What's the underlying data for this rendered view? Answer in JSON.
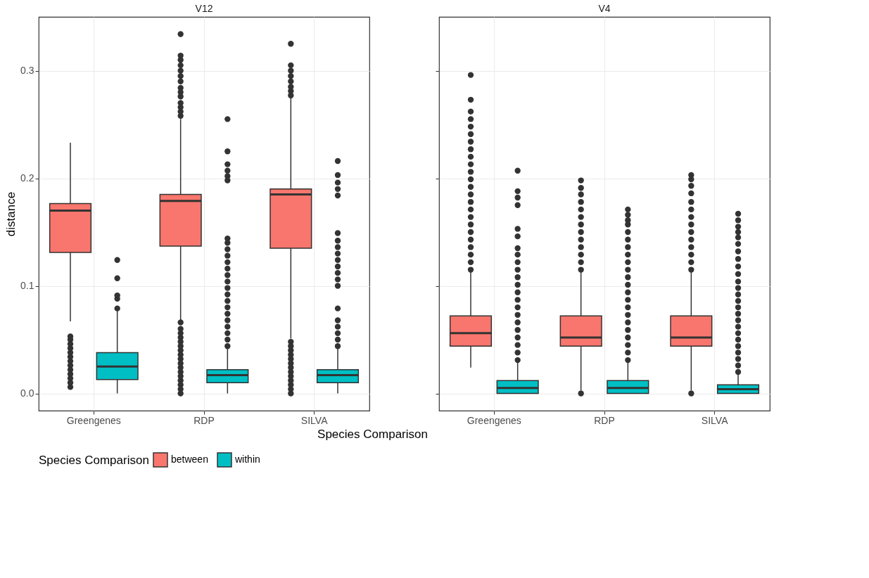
{
  "chart_data": [
    {
      "type": "box",
      "title": "V12",
      "xlabel": "Species Comparison",
      "ylabel": "distance",
      "legend_title": "Species Comparison",
      "legend": "bottom",
      "grid": true,
      "ylim": [
        -0.016,
        0.35
      ],
      "yticks": [
        {
          "value": 0,
          "label": "0.0"
        },
        {
          "value": 0.1,
          "label": "0.1"
        },
        {
          "value": 0.2,
          "label": "0.2"
        },
        {
          "value": 0.3,
          "label": "0.3"
        }
      ],
      "categories": [
        "Greengenes",
        "RDP",
        "SILVA"
      ],
      "series": [
        {
          "name": "between",
          "color": "#f8766d",
          "boxes": [
            {
              "low": 0.067,
              "q1": 0.131,
              "median": 0.17,
              "q3": 0.1765,
              "high": 0.233,
              "outliers": [
                0.006,
                0.01,
                0.014,
                0.018,
                0.022,
                0.026,
                0.03,
                0.034,
                0.038,
                0.042,
                0.046,
                0.05,
                0.053
              ]
            },
            {
              "low": 0.067,
              "q1": 0.137,
              "median": 0.179,
              "q3": 0.185,
              "high": 0.255,
              "outliers": [
                0,
                0.004,
                0.008,
                0.012,
                0.016,
                0.02,
                0.024,
                0.028,
                0.032,
                0.036,
                0.04,
                0.044,
                0.048,
                0.052,
                0.056,
                0.06,
                0.066,
                0.258,
                0.262,
                0.266,
                0.27,
                0.276,
                0.28,
                0.284,
                0.29,
                0.295,
                0.3,
                0.305,
                0.31,
                0.314,
                0.334
              ]
            },
            {
              "low": 0.051,
              "q1": 0.135,
              "median": 0.185,
              "q3": 0.19,
              "high": 0.275,
              "outliers": [
                0,
                0.004,
                0.008,
                0.012,
                0.016,
                0.02,
                0.024,
                0.028,
                0.032,
                0.036,
                0.04,
                0.044,
                0.048,
                0.277,
                0.281,
                0.285,
                0.29,
                0.295,
                0.3,
                0.305,
                0.325
              ]
            }
          ]
        },
        {
          "name": "within",
          "color": "#00bfc4",
          "boxes": [
            {
              "low": 0,
              "q1": 0.013,
              "median": 0.025,
              "q3": 0.038,
              "high": 0.077,
              "outliers": [
                0.079,
                0.088,
                0.091,
                0.107,
                0.124
              ]
            },
            {
              "low": 0,
              "q1": 0.01,
              "median": 0.017,
              "q3": 0.022,
              "high": 0.042,
              "outliers": [
                0.044,
                0.05,
                0.056,
                0.062,
                0.068,
                0.074,
                0.08,
                0.086,
                0.092,
                0.098,
                0.104,
                0.11,
                0.116,
                0.122,
                0.128,
                0.134,
                0.14,
                0.144,
                0.198,
                0.202,
                0.207,
                0.213,
                0.225,
                0.255
              ]
            },
            {
              "low": 0,
              "q1": 0.01,
              "median": 0.017,
              "q3": 0.022,
              "high": 0.042,
              "outliers": [
                0.044,
                0.05,
                0.056,
                0.062,
                0.068,
                0.079,
                0.1,
                0.106,
                0.112,
                0.118,
                0.124,
                0.13,
                0.136,
                0.142,
                0.149,
                0.184,
                0.19,
                0.196,
                0.203,
                0.216
              ]
            }
          ]
        }
      ]
    },
    {
      "type": "box",
      "title": "V4",
      "grid": true,
      "tick_labels": "x",
      "ylim": [
        -0.016,
        0.35
      ],
      "yticks": [
        {
          "value": 0,
          "label": null
        },
        {
          "value": 0.1,
          "label": null
        },
        {
          "value": 0.2,
          "label": null
        },
        {
          "value": 0.3,
          "label": null
        }
      ],
      "categories": [
        "Greengenes",
        "RDP",
        "SILVA"
      ],
      "series": [
        {
          "name": "between",
          "color": "#f8766d",
          "boxes": [
            {
              "low": 0.024,
              "q1": 0.044,
              "median": 0.056,
              "q3": 0.072,
              "high": 0.113,
              "outliers": [
                0.115,
                0.122,
                0.129,
                0.136,
                0.143,
                0.15,
                0.157,
                0.164,
                0.171,
                0.178,
                0.185,
                0.192,
                0.199,
                0.206,
                0.213,
                0.22,
                0.227,
                0.234,
                0.241,
                0.248,
                0.255,
                0.262,
                0.273,
                0.296
              ]
            },
            {
              "low": 0.003,
              "q1": 0.044,
              "median": 0.052,
              "q3": 0.072,
              "high": 0.113,
              "outliers": [
                0,
                0.115,
                0.122,
                0.129,
                0.136,
                0.143,
                0.15,
                0.157,
                0.164,
                0.171,
                0.178,
                0.185,
                0.191,
                0.198
              ]
            },
            {
              "low": 0.003,
              "q1": 0.044,
              "median": 0.052,
              "q3": 0.072,
              "high": 0.113,
              "outliers": [
                0,
                0.115,
                0.122,
                0.129,
                0.136,
                0.143,
                0.15,
                0.157,
                0.164,
                0.171,
                0.178,
                0.186,
                0.193,
                0.199,
                0.203
              ]
            }
          ]
        },
        {
          "name": "within",
          "color": "#00bfc4",
          "boxes": [
            {
              "low": 0,
              "q1": 0,
              "median": 0.005,
              "q3": 0.012,
              "high": 0.029,
              "outliers": [
                0.031,
                0.038,
                0.045,
                0.052,
                0.059,
                0.066,
                0.073,
                0.08,
                0.087,
                0.094,
                0.101,
                0.108,
                0.115,
                0.122,
                0.129,
                0.135,
                0.146,
                0.153,
                0.175,
                0.182,
                0.188,
                0.207
              ]
            },
            {
              "low": 0,
              "q1": 0,
              "median": 0.005,
              "q3": 0.012,
              "high": 0.029,
              "outliers": [
                0.031,
                0.038,
                0.045,
                0.052,
                0.059,
                0.066,
                0.073,
                0.08,
                0.087,
                0.094,
                0.101,
                0.108,
                0.115,
                0.122,
                0.129,
                0.136,
                0.143,
                0.15,
                0.157,
                0.161,
                0.166,
                0.171
              ]
            },
            {
              "low": 0,
              "q1": 0,
              "median": 0.004,
              "q3": 0.008,
              "high": 0.018,
              "outliers": [
                0.02,
                0.026,
                0.032,
                0.038,
                0.044,
                0.05,
                0.056,
                0.062,
                0.068,
                0.074,
                0.08,
                0.086,
                0.092,
                0.098,
                0.104,
                0.111,
                0.118,
                0.125,
                0.132,
                0.139,
                0.145,
                0.15,
                0.155,
                0.161,
                0.167
              ]
            }
          ]
        }
      ]
    }
  ]
}
